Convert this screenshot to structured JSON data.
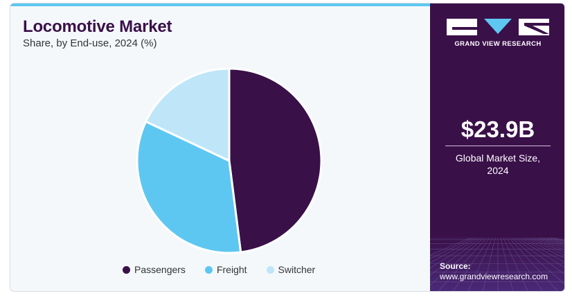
{
  "header": {
    "title": "Locomotive Market",
    "subtitle": "Share, by End-use, 2024 (%)"
  },
  "chart_data": {
    "type": "pie",
    "title": "Locomotive Market",
    "subtitle": "Share, by End-use, 2024 (%)",
    "categories": [
      "Passengers",
      "Freight",
      "Switcher"
    ],
    "values": [
      48,
      34,
      18
    ],
    "colors": [
      "#3a1049",
      "#5ec7f1",
      "#bfe6f8"
    ],
    "legend_position": "bottom"
  },
  "sidebar": {
    "brand": "GRAND VIEW RESEARCH",
    "market_size": "$23.9B",
    "market_size_label_line1": "Global Market Size,",
    "market_size_label_line2": "2024",
    "source_label": "Source:",
    "source_url": "www.grandviewresearch.com"
  }
}
